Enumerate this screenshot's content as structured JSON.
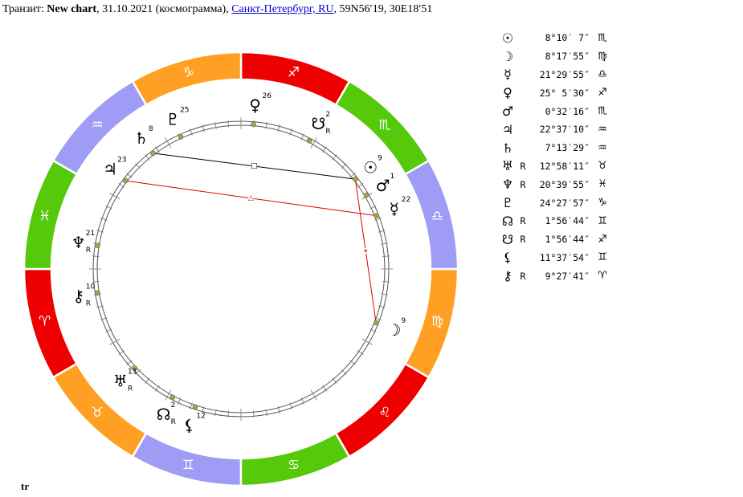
{
  "header": {
    "prefix": "Транзит: ",
    "chart_name": "New chart",
    "date_part": ", 31.10.2021 (космограмма), ",
    "location_link": "Санкт-Петербург, RU",
    "coords": ", 59N56′19, 30E18′51"
  },
  "footer": {
    "label": "tr"
  },
  "zodiac": [
    {
      "sign": "aries",
      "glyph": "♈",
      "color": "#ee0000"
    },
    {
      "sign": "taurus",
      "glyph": "♉",
      "color": "#ffa024"
    },
    {
      "sign": "gemini",
      "glyph": "♊",
      "color": "#9e9cf5"
    },
    {
      "sign": "cancer",
      "glyph": "♋",
      "color": "#55c90a"
    },
    {
      "sign": "leo",
      "glyph": "♌",
      "color": "#ee0000"
    },
    {
      "sign": "virgo",
      "glyph": "♍",
      "color": "#ffa024"
    },
    {
      "sign": "libra",
      "glyph": "♎",
      "color": "#9e9cf5"
    },
    {
      "sign": "scorpio",
      "glyph": "♏",
      "color": "#55c90a"
    },
    {
      "sign": "sagittarius",
      "glyph": "♐",
      "color": "#ee0000"
    },
    {
      "sign": "capricorn",
      "glyph": "♑",
      "color": "#ffa024"
    },
    {
      "sign": "aquarius",
      "glyph": "♒",
      "color": "#9e9cf5"
    },
    {
      "sign": "pisces",
      "glyph": "♓",
      "color": "#55c90a"
    }
  ],
  "planets": [
    {
      "name": "sun",
      "glyph": "☉",
      "retro": "",
      "position": "8°10′ 7″",
      "sign_glyph": "♏",
      "degree_label": "9",
      "wheel_lon": 218.17
    },
    {
      "name": "moon",
      "glyph": "☽",
      "retro": "",
      "position": "8°17′55″",
      "sign_glyph": "♍",
      "degree_label": "9",
      "wheel_lon": 158.3
    },
    {
      "name": "mercury",
      "glyph": "☿",
      "retro": "",
      "position": "21°29′55″",
      "sign_glyph": "♎",
      "degree_label": "22",
      "wheel_lon": 201.5
    },
    {
      "name": "venus",
      "glyph": "♀",
      "retro": "",
      "position": "25° 5′30″",
      "sign_glyph": "♐",
      "degree_label": "26",
      "wheel_lon": 265.09
    },
    {
      "name": "mars",
      "glyph": "♂",
      "retro": "",
      "position": "0°32′16″",
      "sign_glyph": "♏",
      "degree_label": "1",
      "wheel_lon": 210.54
    },
    {
      "name": "jupiter",
      "glyph": "♃",
      "retro": "",
      "position": "22°37′10″",
      "sign_glyph": "♒",
      "degree_label": "23",
      "wheel_lon": 322.62
    },
    {
      "name": "saturn",
      "glyph": "♄",
      "retro": "",
      "position": "7°13′29″",
      "sign_glyph": "♒",
      "degree_label": "8",
      "wheel_lon": 307.22
    },
    {
      "name": "uranus",
      "glyph": "♅",
      "retro": "R",
      "position": "12°58′11″",
      "sign_glyph": "♉",
      "degree_label": "13",
      "wheel_lon": 42.97
    },
    {
      "name": "neptune",
      "glyph": "♆",
      "retro": "R",
      "position": "20°39′55″",
      "sign_glyph": "♓",
      "degree_label": "21",
      "wheel_lon": 350.67
    },
    {
      "name": "pluto",
      "glyph": "♇",
      "retro": "",
      "position": "24°27′57″",
      "sign_glyph": "♑",
      "degree_label": "25",
      "wheel_lon": 294.47
    },
    {
      "name": "north-node",
      "glyph": "☊",
      "retro": "R",
      "position": "1°56′44″",
      "sign_glyph": "♊",
      "degree_label": "2",
      "wheel_lon": 61.95
    },
    {
      "name": "south-node",
      "glyph": "☋",
      "retro": "R",
      "position": "1°56′44″",
      "sign_glyph": "♐",
      "degree_label": "2",
      "wheel_lon": 241.95
    },
    {
      "name": "lilith",
      "glyph": "⚸",
      "retro": "",
      "position": "11°37′54″",
      "sign_glyph": "♊",
      "degree_label": "12",
      "wheel_lon": 71.63
    },
    {
      "name": "chiron",
      "glyph": "⚷",
      "retro": "R",
      "position": "9°27′41″",
      "sign_glyph": "♈",
      "degree_label": "10",
      "wheel_lon": 9.46
    }
  ],
  "aspects": [
    {
      "from": "saturn",
      "to": "sun",
      "color": "#000000",
      "symbol": "□"
    },
    {
      "from": "jupiter",
      "to": "mercury",
      "color": "#dd0000",
      "symbol": "△"
    },
    {
      "from": "sun",
      "to": "moon",
      "color": "#dd0000",
      "symbol": "⚹"
    }
  ]
}
